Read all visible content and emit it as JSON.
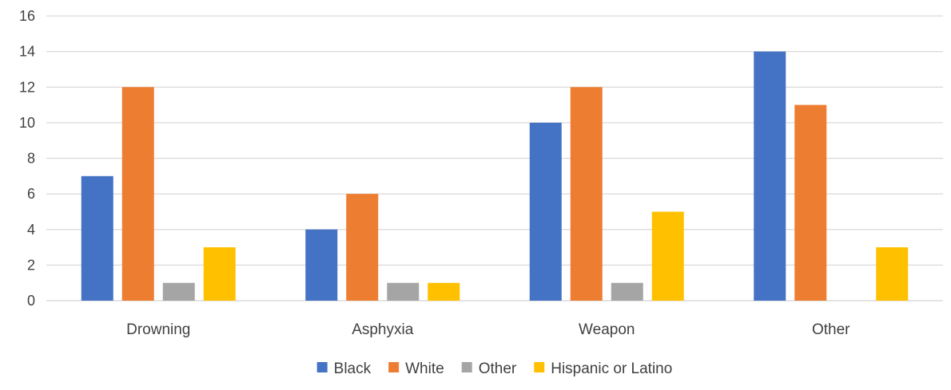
{
  "chart_data": {
    "type": "bar",
    "categories": [
      "Drowning",
      "Asphyxia",
      "Weapon",
      "Other"
    ],
    "series": [
      {
        "name": "Black",
        "color": "#4472C4",
        "values": [
          7,
          4,
          10,
          14
        ]
      },
      {
        "name": "White",
        "color": "#ED7D31",
        "values": [
          12,
          6,
          12,
          11
        ]
      },
      {
        "name": "Other",
        "color": "#A5A5A5",
        "values": [
          1,
          1,
          1,
          0
        ]
      },
      {
        "name": "Hispanic or Latino",
        "color": "#FFC000",
        "values": [
          3,
          1,
          5,
          3
        ]
      }
    ],
    "ylim": [
      0,
      16
    ],
    "yticks": [
      0,
      2,
      4,
      6,
      8,
      10,
      12,
      14,
      16
    ],
    "grid": true,
    "legend_position": "bottom"
  }
}
